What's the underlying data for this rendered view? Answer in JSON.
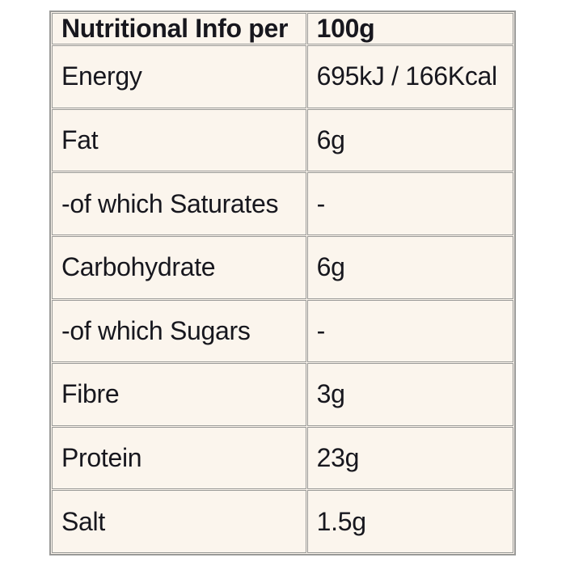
{
  "page": {
    "background_color": "#ffffff"
  },
  "table": {
    "colors": {
      "cell_background": "#fbf5ed",
      "border": "#9a9a98",
      "text": "#17171e"
    },
    "header": {
      "label": "Nutritional Info per",
      "value": "100g"
    },
    "rows": [
      {
        "label": "Energy",
        "value": "695kJ / 166Kcal"
      },
      {
        "label": "Fat",
        "value": "6g"
      },
      {
        "label": "-of which Saturates",
        "value": "-"
      },
      {
        "label": "Carbohydrate",
        "value": "6g"
      },
      {
        "label": "-of which Sugars",
        "value": "-"
      },
      {
        "label": "Fibre",
        "value": "3g"
      },
      {
        "label": "Protein",
        "value": "23g"
      },
      {
        "label": "Salt",
        "value": "1.5g"
      }
    ]
  }
}
